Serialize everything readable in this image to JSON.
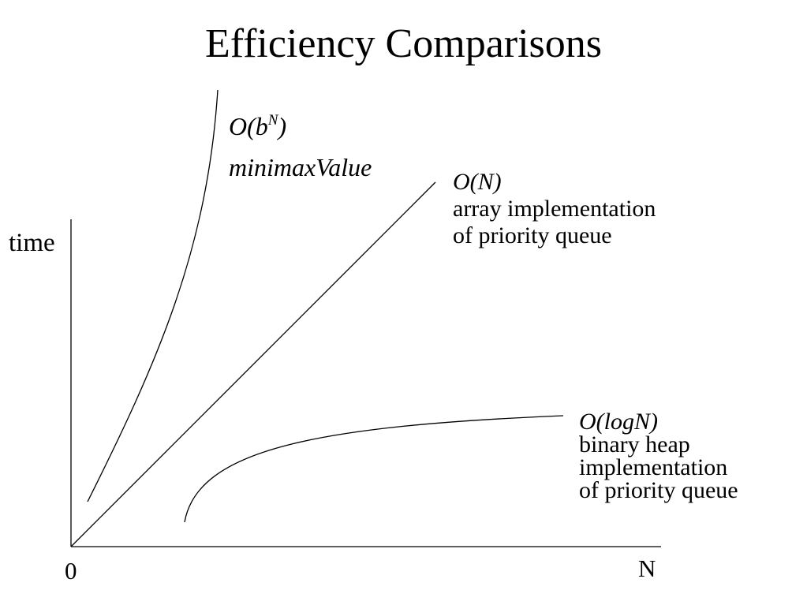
{
  "title": "Efficiency Comparisons",
  "axes": {
    "y_label": "time",
    "origin_label": "0",
    "x_label": "N"
  },
  "curves": {
    "exponential": {
      "complexity_base": "O(b",
      "complexity_exponent": "N",
      "complexity_close": ")",
      "description": "minimaxValue"
    },
    "linear": {
      "complexity": "O(N)",
      "description_line1": "array implementation",
      "description_line2": "of priority queue"
    },
    "logarithmic": {
      "complexity": "O(logN)",
      "description_line1": "binary heap",
      "description_line2": "implementation",
      "description_line3": "of priority queue"
    }
  },
  "colors": {
    "background": "#ffffff",
    "ink": "#000000"
  }
}
